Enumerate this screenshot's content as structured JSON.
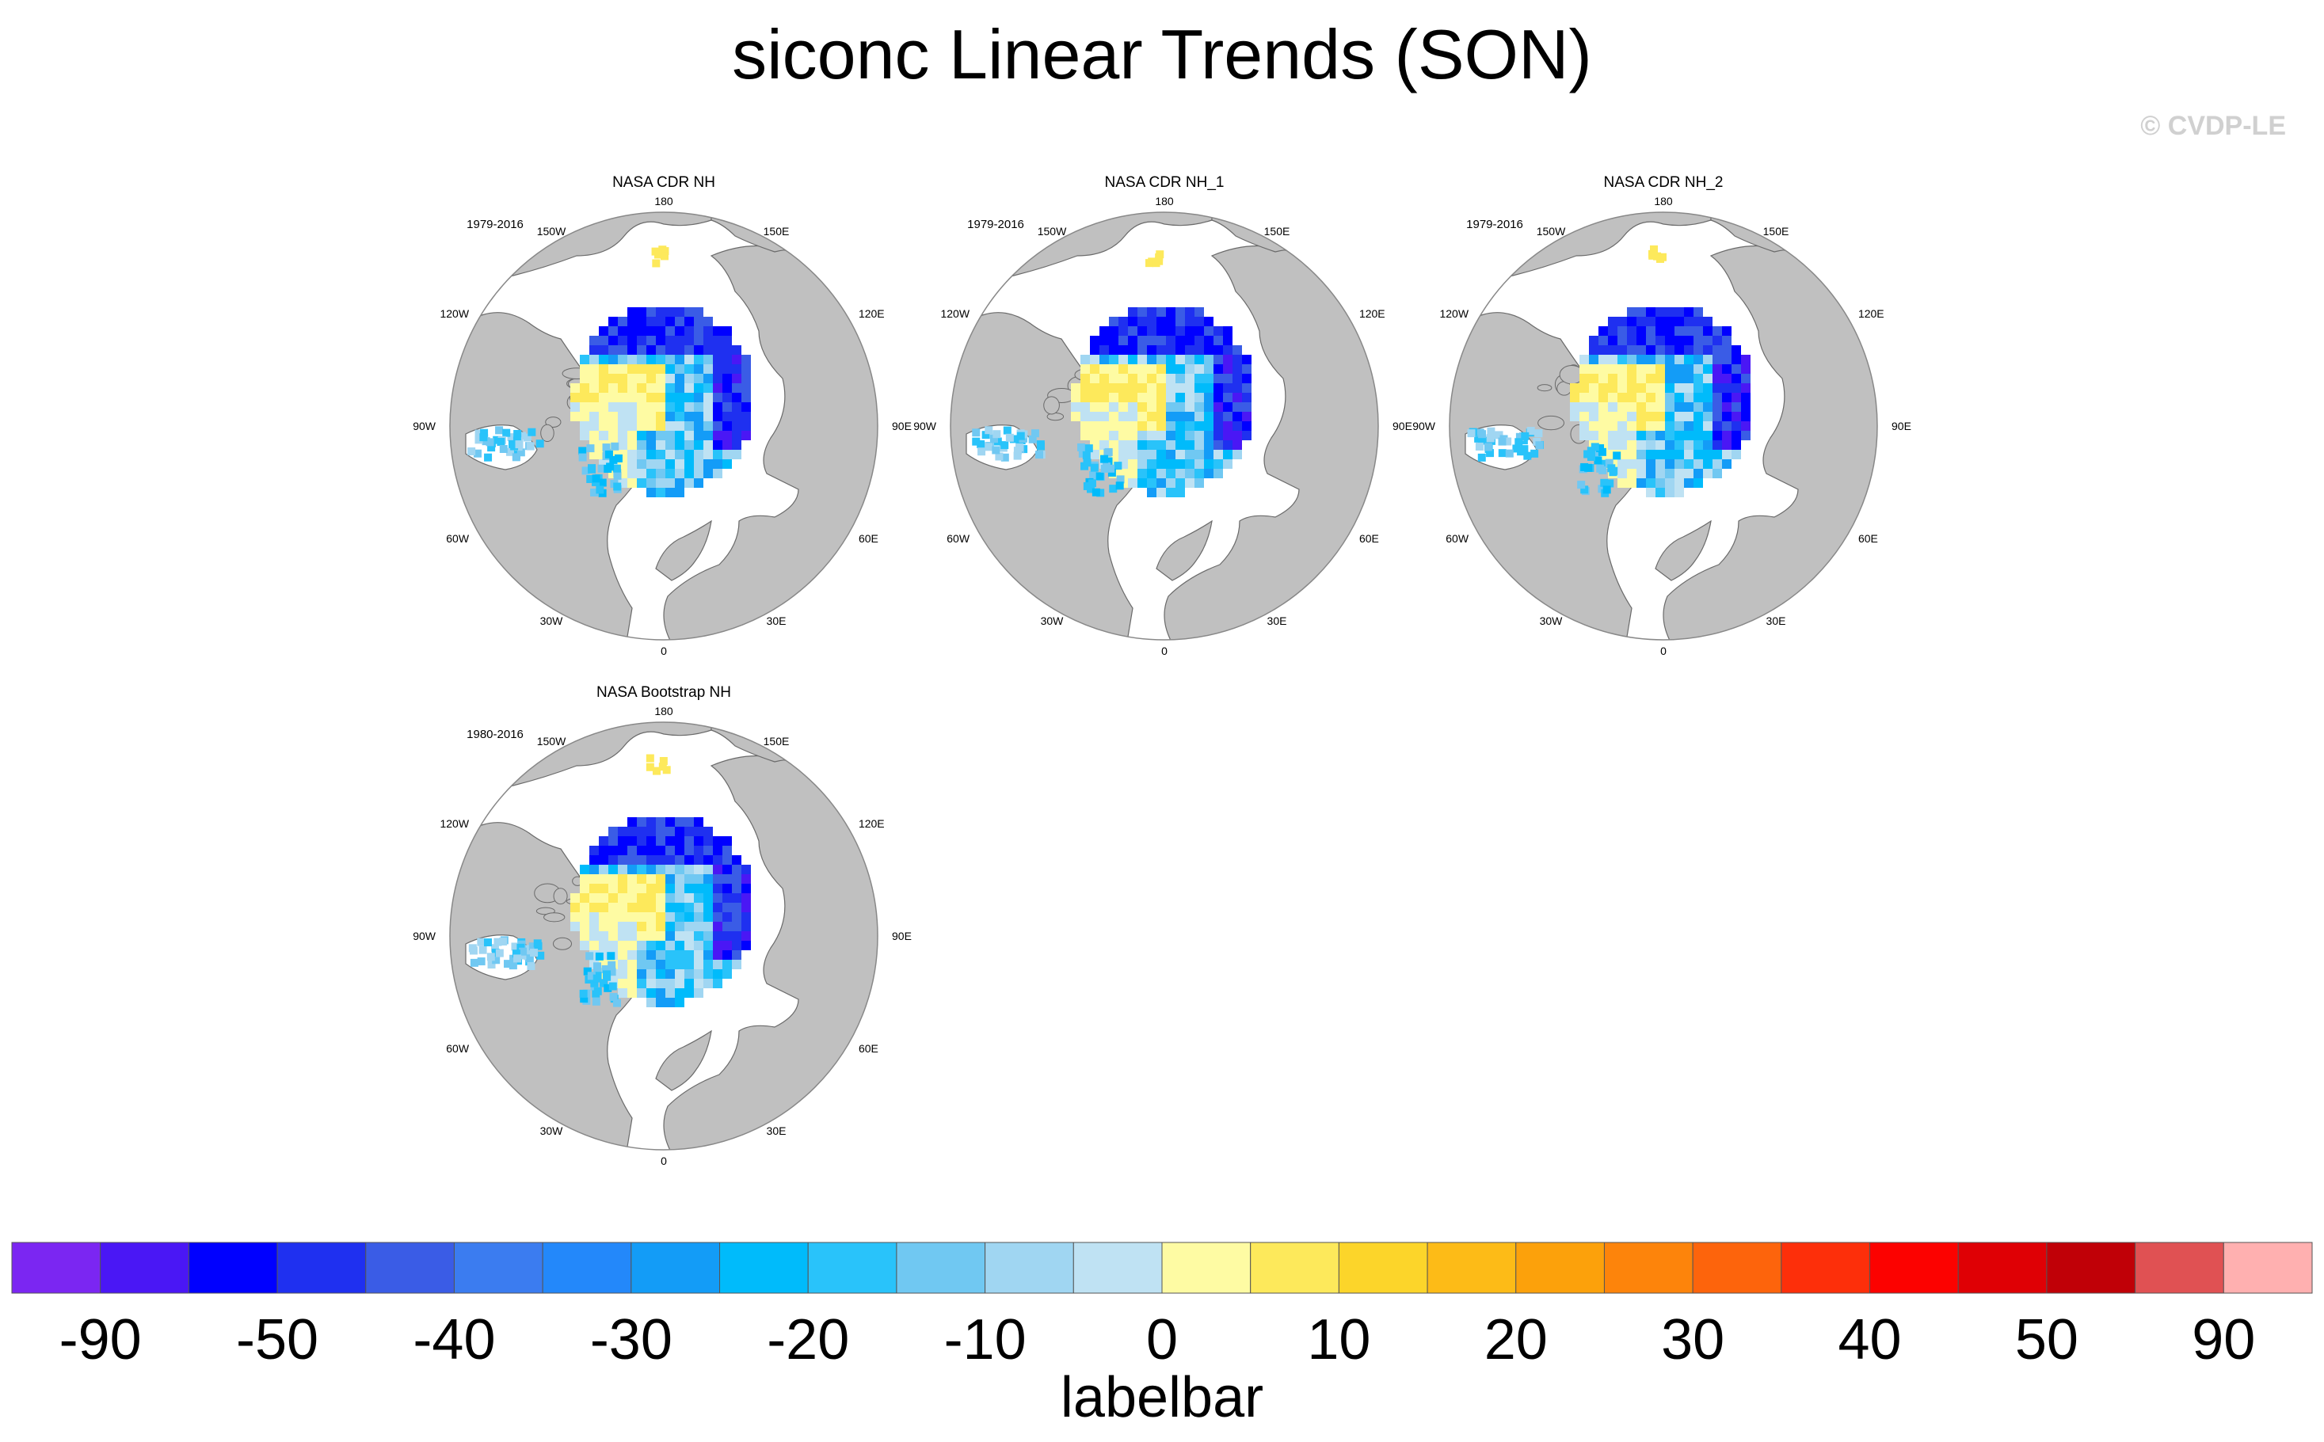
{
  "figure": {
    "title": "siconc Linear Trends (SON)",
    "watermark": "© CVDP-LE"
  },
  "panel_lon_labels": [
    "180",
    "150E",
    "120E",
    "90E",
    "60E",
    "30E",
    "0",
    "30W",
    "60W",
    "90W",
    "120W",
    "150W"
  ],
  "colors": {
    "land": "#c0c0c0",
    "ocean": "#ffffff",
    "coast": "#6a6a6a"
  },
  "chart_data": [
    {
      "type": "heatmap",
      "title": "NASA CDR NH",
      "period": "1979-2016",
      "projection": "north-polar-stereographic",
      "variable": "siconc linear trend (SON)"
    },
    {
      "type": "heatmap",
      "title": "NASA CDR NH_1",
      "period": "1979-2016",
      "projection": "north-polar-stereographic",
      "variable": "siconc linear trend (SON)"
    },
    {
      "type": "heatmap",
      "title": "NASA CDR NH_2",
      "period": "1979-2016",
      "projection": "north-polar-stereographic",
      "variable": "siconc linear trend (SON)"
    },
    {
      "type": "heatmap",
      "title": "NASA Bootstrap NH",
      "period": "1980-2016",
      "projection": "north-polar-stereographic",
      "variable": "siconc linear trend (SON)"
    }
  ],
  "colorbar": {
    "label": "labelbar",
    "tick_labels": [
      "-90",
      "-50",
      "-40",
      "-30",
      "-20",
      "-10",
      "0",
      "10",
      "20",
      "30",
      "40",
      "50",
      "90"
    ],
    "colors": [
      "#7b26f2",
      "#4a17f5",
      "#0000ff",
      "#1f30f0",
      "#3a5ce6",
      "#3b7cf0",
      "#2388fa",
      "#139cf7",
      "#00bbfb",
      "#29c3fa",
      "#70c8f2",
      "#a0d6f2",
      "#bfe2f3",
      "#fefba3",
      "#fde95b",
      "#fcd52a",
      "#fdbb17",
      "#fca10b",
      "#fd840b",
      "#fd640c",
      "#fd2f0a",
      "#fc0200",
      "#df0005",
      "#c00007",
      "#e05153",
      "#ffb0b0"
    ]
  }
}
